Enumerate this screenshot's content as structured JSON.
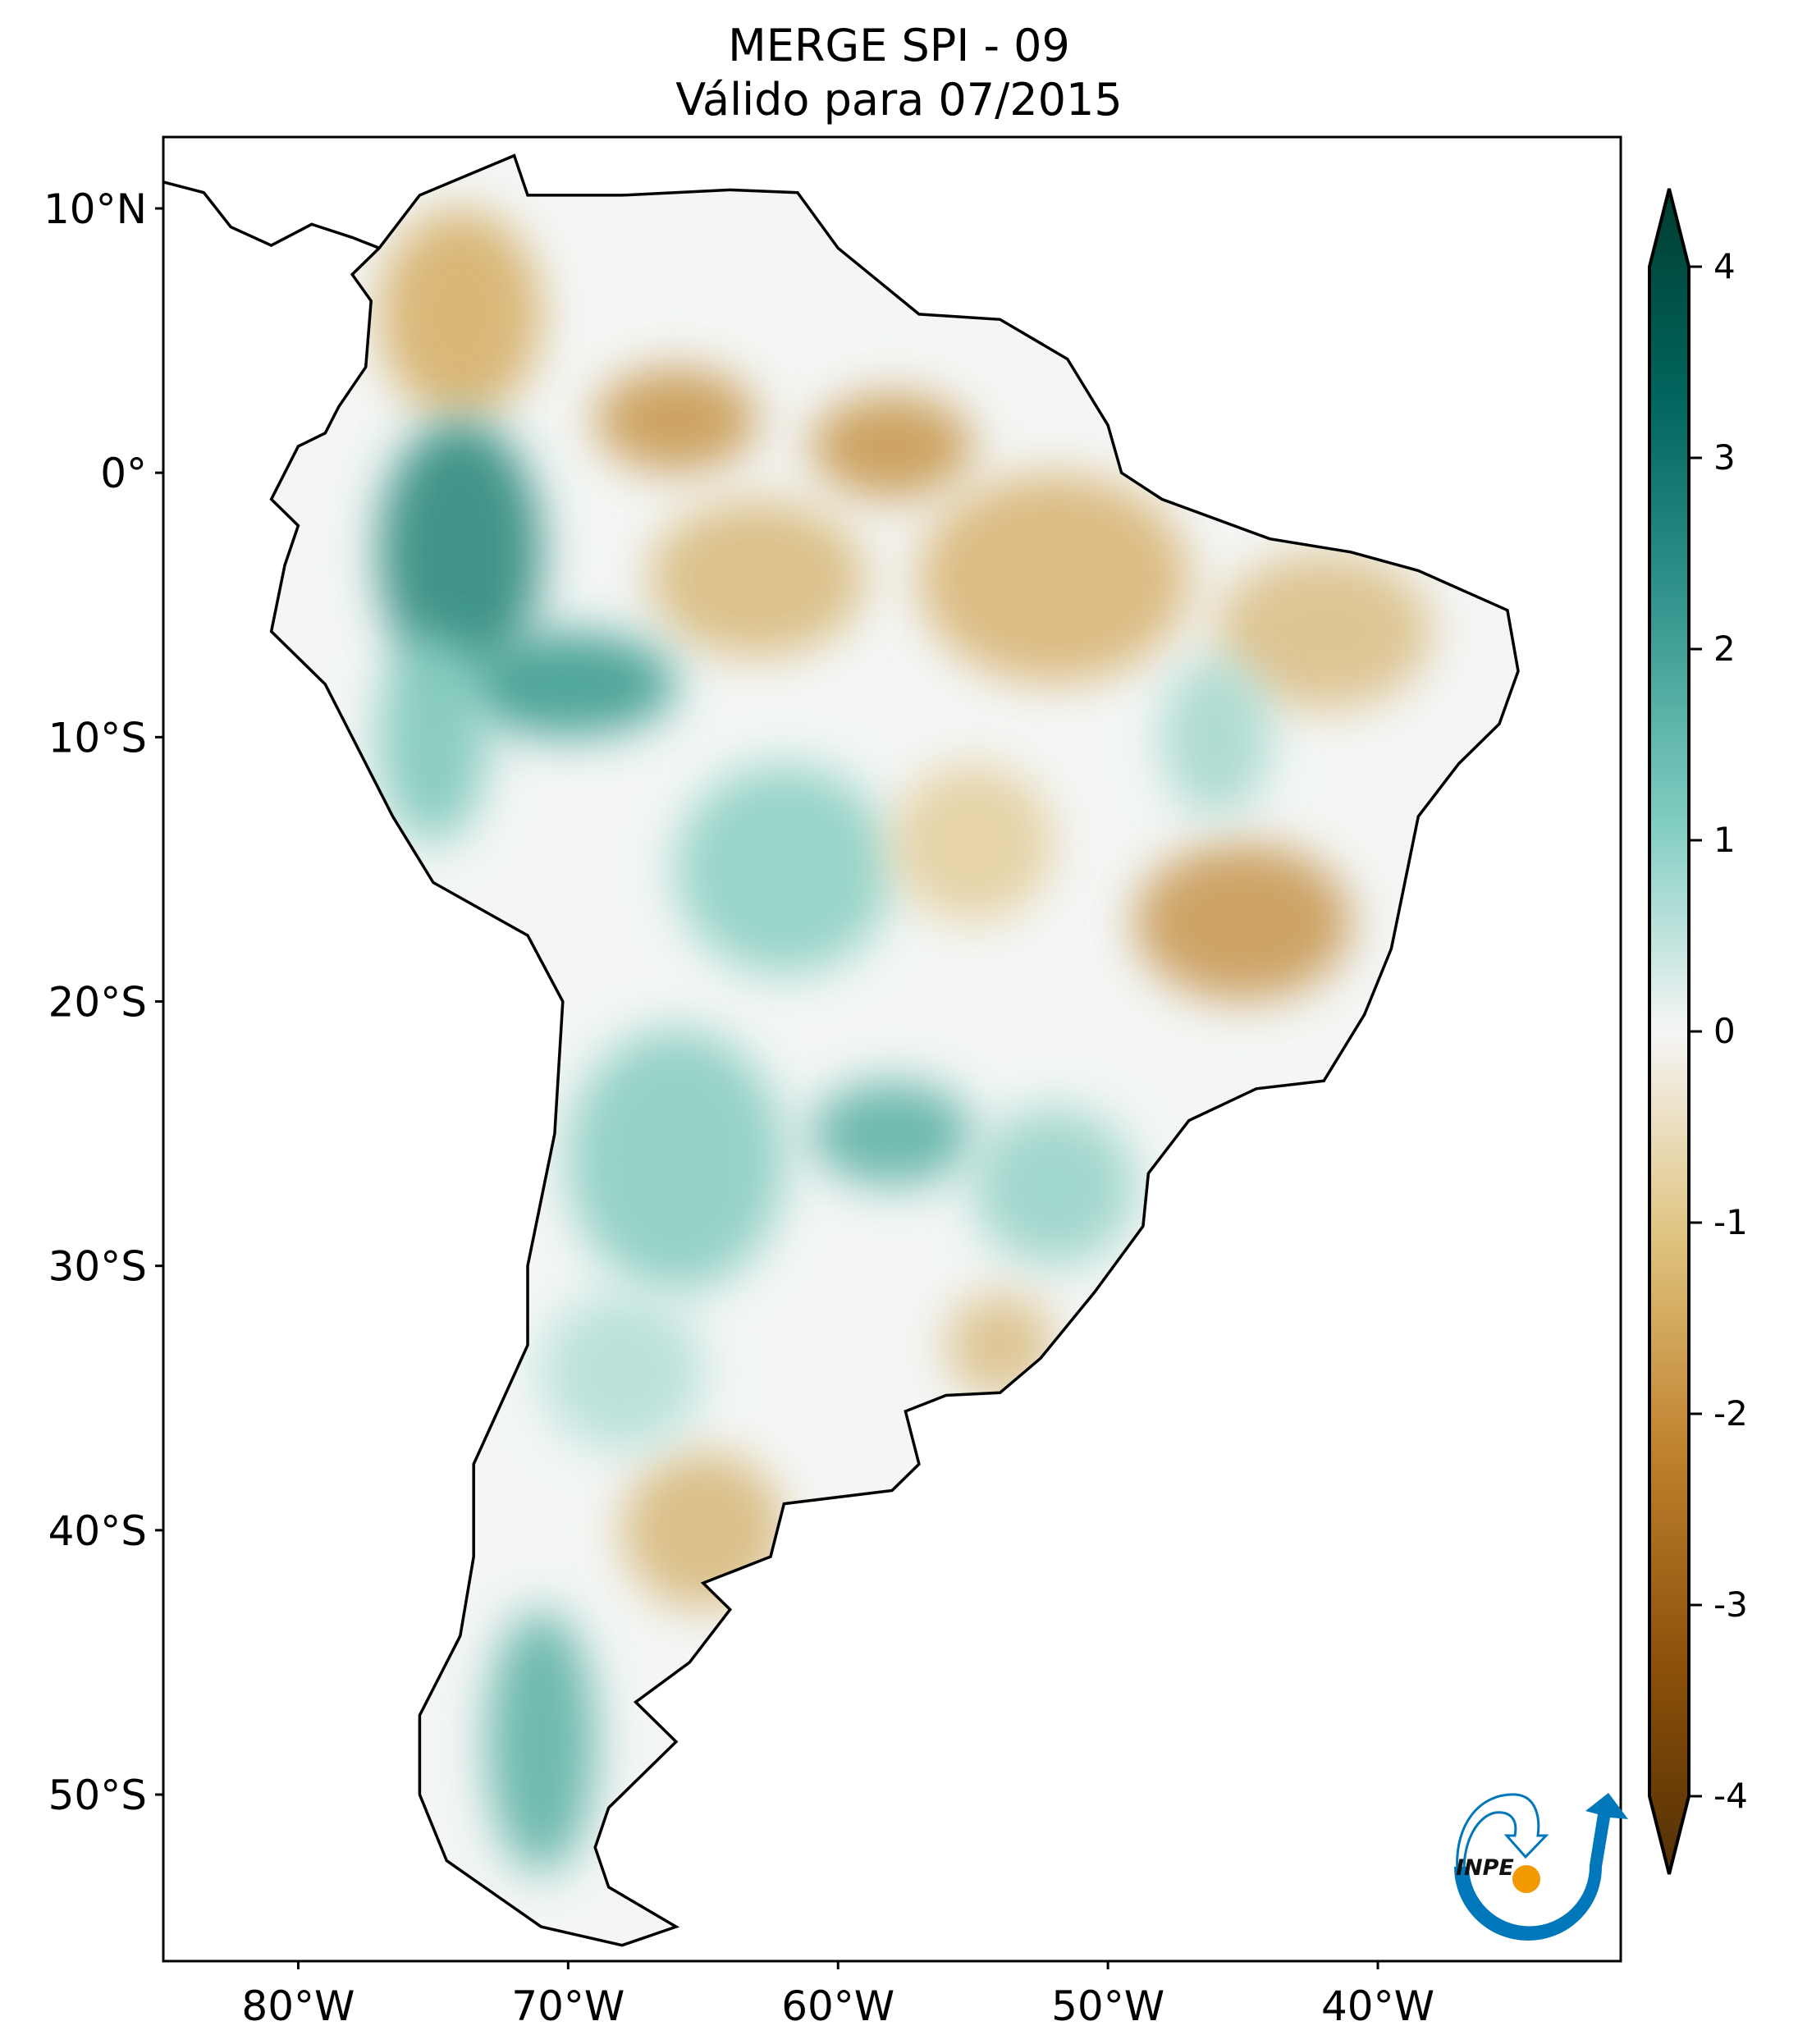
{
  "title": "MERGE   SPI - 09",
  "subtitle": "Válido para 07/2015",
  "map": {
    "lon_range": [
      -85,
      -31
    ],
    "lat_range": [
      -56.3,
      12.7
    ],
    "lat_ticks": [
      {
        "value": 10,
        "label": "10°N"
      },
      {
        "value": 0,
        "label": "0°"
      },
      {
        "value": -10,
        "label": "10°S"
      },
      {
        "value": -20,
        "label": "20°S"
      },
      {
        "value": -30,
        "label": "30°S"
      },
      {
        "value": -40,
        "label": "40°S"
      },
      {
        "value": -50,
        "label": "50°S"
      }
    ],
    "lon_ticks": [
      {
        "value": -80,
        "label": "80°W"
      },
      {
        "value": -70,
        "label": "70°W"
      },
      {
        "value": -60,
        "label": "60°W"
      },
      {
        "value": -50,
        "label": "50°W"
      },
      {
        "value": -40,
        "label": "40°W"
      }
    ]
  },
  "colorbar": {
    "range": [
      -4,
      4
    ],
    "ticks": [
      {
        "value": 4,
        "label": "4"
      },
      {
        "value": 3,
        "label": "3"
      },
      {
        "value": 2,
        "label": "2"
      },
      {
        "value": 1,
        "label": "1"
      },
      {
        "value": 0,
        "label": "0"
      },
      {
        "value": -1,
        "label": "-1"
      },
      {
        "value": -2,
        "label": "-2"
      },
      {
        "value": -3,
        "label": "-3"
      },
      {
        "value": -4,
        "label": "-4"
      }
    ],
    "colors": {
      "wet_max": "#003c30",
      "wet": "#35978f",
      "neutral": "#f5f5f5",
      "dry": "#dfc27d",
      "dry_max": "#543005"
    }
  },
  "logo": {
    "text": "INPE",
    "blue": "#0077bb",
    "orange": "#f39a00"
  }
}
